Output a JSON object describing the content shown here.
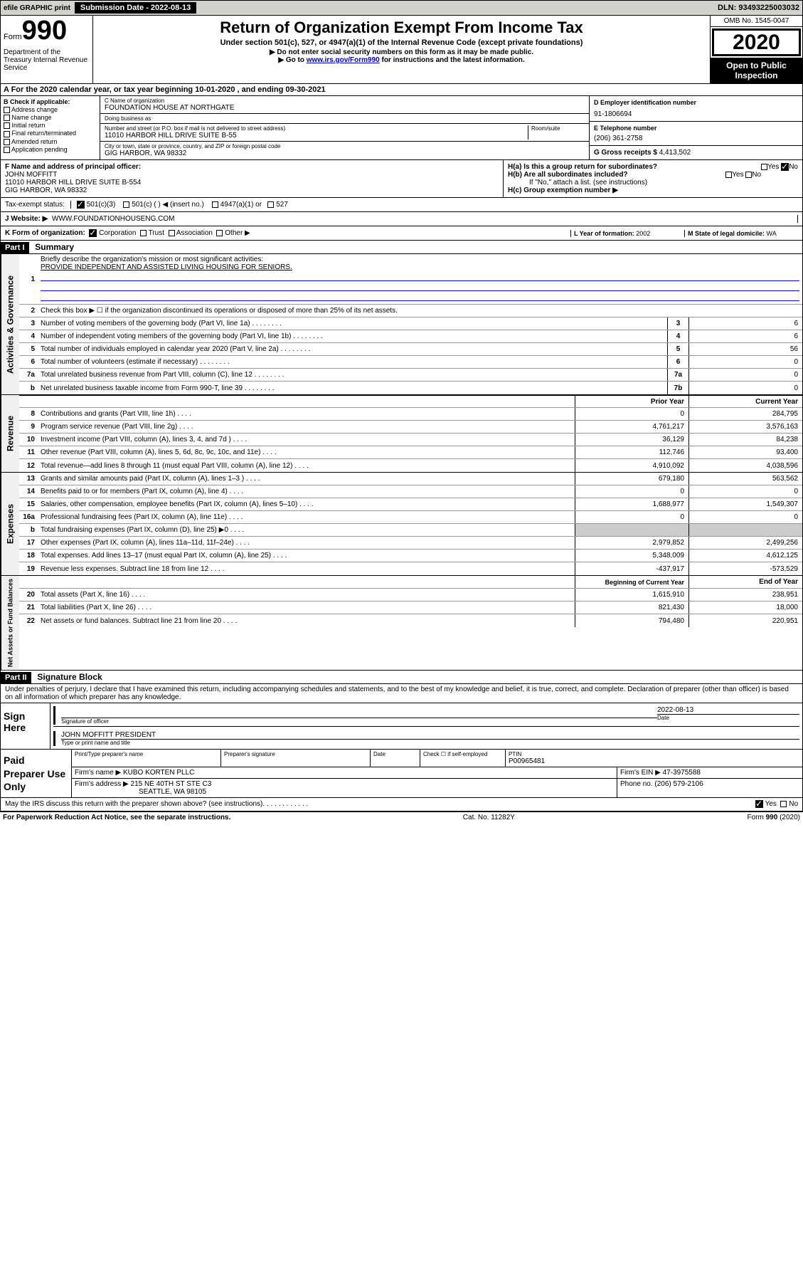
{
  "topbar": {
    "efile": "efile GRAPHIC print",
    "submission": "Submission Date - 2022-08-13",
    "dln": "DLN: 93493225003032"
  },
  "header": {
    "form_word": "Form",
    "form_num": "990",
    "dept": "Department of the Treasury Internal Revenue Service",
    "title": "Return of Organization Exempt From Income Tax",
    "sub": "Under section 501(c), 527, or 4947(a)(1) of the Internal Revenue Code (except private foundations)",
    "note1": "▶ Do not enter social security numbers on this form as it may be made public.",
    "note2_pre": "▶ Go to ",
    "note2_link": "www.irs.gov/Form990",
    "note2_post": " for instructions and the latest information.",
    "omb": "OMB No. 1545-0047",
    "year": "2020",
    "inspect": "Open to Public Inspection"
  },
  "section_a": "A For the 2020 calendar year, or tax year beginning 10-01-2020    , and ending 09-30-2021",
  "box_b": {
    "label": "B Check if applicable:",
    "items": [
      "Address change",
      "Name change",
      "Initial return",
      "Final return/terminated",
      "Amended return",
      "Application pending"
    ]
  },
  "box_c": {
    "name_label": "C Name of organization",
    "name": "FOUNDATION HOUSE AT NORTHGATE",
    "dba_label": "Doing business as",
    "dba": "",
    "addr_label": "Number and street (or P.O. box if mail is not delivered to street address)",
    "addr": "11010 HARBOR HILL DRIVE SUITE B-55",
    "room_label": "Room/suite",
    "city_label": "City or town, state or province, country, and ZIP or foreign postal code",
    "city": "GIG HARBOR, WA  98332"
  },
  "box_d": {
    "label": "D Employer identification number",
    "val": "91-1806694"
  },
  "box_e": {
    "label": "E Telephone number",
    "val": "(206) 361-2758"
  },
  "box_g": {
    "label": "G Gross receipts $",
    "val": "4,413,502"
  },
  "box_f": {
    "label": "F Name and address of principal officer:",
    "name": "JOHN MOFFITT",
    "addr": "11010 HARBOR HILL DRIVE SUITE B-554",
    "city": "GIG HARBOR, WA  98332"
  },
  "box_h": {
    "a": "H(a)  Is this a group return for subordinates?",
    "b": "H(b)  Are all subordinates included?",
    "note": "If \"No,\" attach a list. (see instructions)",
    "c": "H(c)  Group exemption number ▶",
    "yes": "Yes",
    "no": "No"
  },
  "box_i": {
    "label": "Tax-exempt status:",
    "opts": [
      "501(c)(3)",
      "501(c) (  ) ◀ (insert no.)",
      "4947(a)(1) or",
      "527"
    ]
  },
  "box_j": {
    "label": "J   Website: ▶",
    "val": "WWW.FOUNDATIONHOUSENG.COM"
  },
  "box_k": {
    "label": "K Form of organization:",
    "opts": [
      "Corporation",
      "Trust",
      "Association",
      "Other ▶"
    ]
  },
  "box_l": {
    "label": "L Year of formation:",
    "val": "2002"
  },
  "box_m": {
    "label": "M State of legal domicile:",
    "val": "WA"
  },
  "part1": {
    "header": "Part I",
    "title": "Summary"
  },
  "governance": {
    "label": "Activities & Governance",
    "line1": "Briefly describe the organization's mission or most significant activities:",
    "mission": "PROVIDE INDEPENDENT AND ASSISTED LIVING HOUSING FOR SENIORS.",
    "line2": "Check this box ▶ ☐ if the organization discontinued its operations or disposed of more than 25% of its net assets.",
    "rows": [
      {
        "n": "3",
        "d": "Number of voting members of the governing body (Part VI, line 1a)",
        "b": "3",
        "v": "6"
      },
      {
        "n": "4",
        "d": "Number of independent voting members of the governing body (Part VI, line 1b)",
        "b": "4",
        "v": "6"
      },
      {
        "n": "5",
        "d": "Total number of individuals employed in calendar year 2020 (Part V, line 2a)",
        "b": "5",
        "v": "56"
      },
      {
        "n": "6",
        "d": "Total number of volunteers (estimate if necessary)",
        "b": "6",
        "v": "0"
      },
      {
        "n": "7a",
        "d": "Total unrelated business revenue from Part VIII, column (C), line 12",
        "b": "7a",
        "v": "0"
      },
      {
        "n": "b",
        "d": "Net unrelated business taxable income from Form 990-T, line 39",
        "b": "7b",
        "v": "0"
      }
    ]
  },
  "colheads": {
    "prior": "Prior Year",
    "current": "Current Year"
  },
  "revenue": {
    "label": "Revenue",
    "rows": [
      {
        "n": "8",
        "d": "Contributions and grants (Part VIII, line 1h)",
        "p": "0",
        "c": "284,795"
      },
      {
        "n": "9",
        "d": "Program service revenue (Part VIII, line 2g)",
        "p": "4,761,217",
        "c": "3,576,163"
      },
      {
        "n": "10",
        "d": "Investment income (Part VIII, column (A), lines 3, 4, and 7d )",
        "p": "36,129",
        "c": "84,238"
      },
      {
        "n": "11",
        "d": "Other revenue (Part VIII, column (A), lines 5, 6d, 8c, 9c, 10c, and 11e)",
        "p": "112,746",
        "c": "93,400"
      },
      {
        "n": "12",
        "d": "Total revenue—add lines 8 through 11 (must equal Part VIII, column (A), line 12)",
        "p": "4,910,092",
        "c": "4,038,596"
      }
    ]
  },
  "expenses": {
    "label": "Expenses",
    "rows": [
      {
        "n": "13",
        "d": "Grants and similar amounts paid (Part IX, column (A), lines 1–3 )",
        "p": "679,180",
        "c": "563,562"
      },
      {
        "n": "14",
        "d": "Benefits paid to or for members (Part IX, column (A), line 4)",
        "p": "0",
        "c": "0"
      },
      {
        "n": "15",
        "d": "Salaries, other compensation, employee benefits (Part IX, column (A), lines 5–10)",
        "p": "1,688,977",
        "c": "1,549,307"
      },
      {
        "n": "16a",
        "d": "Professional fundraising fees (Part IX, column (A), line 11e)",
        "p": "0",
        "c": "0"
      },
      {
        "n": "b",
        "d": "Total fundraising expenses (Part IX, column (D), line 25) ▶0",
        "p": "",
        "c": "",
        "shaded": true
      },
      {
        "n": "17",
        "d": "Other expenses (Part IX, column (A), lines 11a–11d, 11f–24e)",
        "p": "2,979,852",
        "c": "2,499,256"
      },
      {
        "n": "18",
        "d": "Total expenses. Add lines 13–17 (must equal Part IX, column (A), line 25)",
        "p": "5,348,009",
        "c": "4,612,125"
      },
      {
        "n": "19",
        "d": "Revenue less expenses. Subtract line 18 from line 12",
        "p": "-437,917",
        "c": "-573,529"
      }
    ]
  },
  "colheads2": {
    "begin": "Beginning of Current Year",
    "end": "End of Year"
  },
  "netassets": {
    "label": "Net Assets or Fund Balances",
    "rows": [
      {
        "n": "20",
        "d": "Total assets (Part X, line 16)",
        "p": "1,615,910",
        "c": "238,951"
      },
      {
        "n": "21",
        "d": "Total liabilities (Part X, line 26)",
        "p": "821,430",
        "c": "18,000"
      },
      {
        "n": "22",
        "d": "Net assets or fund balances. Subtract line 21 from line 20",
        "p": "794,480",
        "c": "220,951"
      }
    ]
  },
  "part2": {
    "header": "Part II",
    "title": "Signature Block"
  },
  "declaration": "Under penalties of perjury, I declare that I have examined this return, including accompanying schedules and statements, and to the best of my knowledge and belief, it is true, correct, and complete. Declaration of preparer (other than officer) is based on all information of which preparer has any knowledge.",
  "sign": {
    "label": "Sign Here",
    "sig_label": "Signature of officer",
    "date_label": "Date",
    "date": "2022-08-13",
    "name": "JOHN MOFFITT PRESIDENT",
    "name_label": "Type or print name and title"
  },
  "paid": {
    "label": "Paid Preparer Use Only",
    "prep_name_label": "Print/Type preparer's name",
    "prep_sig_label": "Preparer's signature",
    "prep_date_label": "Date",
    "selfemp": "Check ☐ if self-employed",
    "ptin_label": "PTIN",
    "ptin": "P00965481",
    "firm_name_label": "Firm's name    ▶",
    "firm_name": "KUBO KORTEN PLLC",
    "firm_ein_label": "Firm's EIN ▶",
    "firm_ein": "47-3975588",
    "firm_addr_label": "Firm's address ▶",
    "firm_addr1": "215 NE 40TH ST STE C3",
    "firm_addr2": "SEATTLE, WA  98105",
    "phone_label": "Phone no.",
    "phone": "(206) 579-2106"
  },
  "discuss": "May the IRS discuss this return with the preparer shown above? (see instructions)",
  "footer": {
    "left": "For Paperwork Reduction Act Notice, see the separate instructions.",
    "mid": "Cat. No. 11282Y",
    "right": "Form 990 (2020)"
  }
}
